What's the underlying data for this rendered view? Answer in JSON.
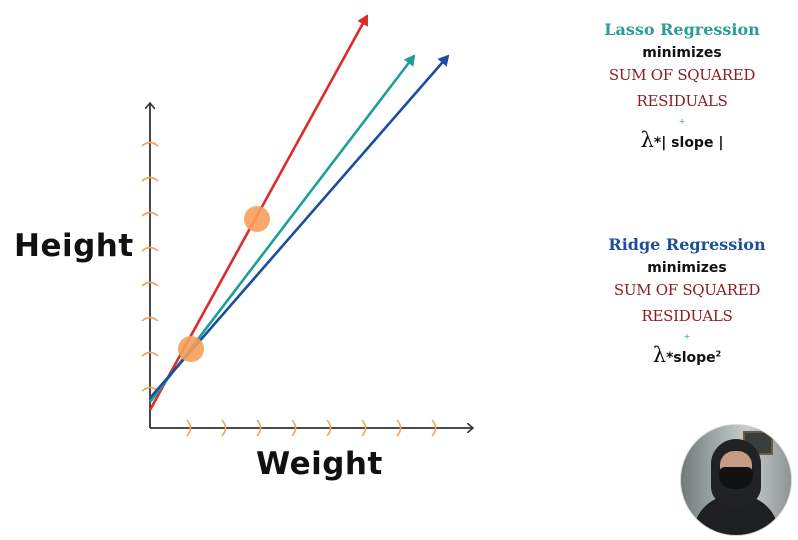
{
  "slide": {
    "x_axis_label": "Weight",
    "y_axis_label": "Height"
  },
  "lasso": {
    "title": "Lasso Regression",
    "title_color": "#2a9d96",
    "minimizes": "minimizes",
    "ssr_line1": "SUM OF SQUARED",
    "ssr_line2": "RESIDUALS",
    "plus": "+",
    "lambda": "λ",
    "penalty": "*| slope |"
  },
  "ridge": {
    "title": "Ridge Regression",
    "title_color": "#1f4e9c",
    "minimizes": "minimizes",
    "ssr_line1": "SUM OF SQUARED",
    "ssr_line2": "RESIDUALS",
    "plus": "+",
    "lambda": "λ",
    "penalty": "*slope",
    "exponent": "2"
  },
  "colors": {
    "axis": "#333333",
    "tick": "#f0a460",
    "point": "#f5a05a",
    "line_red": "#dd2a2a",
    "line_teal": "#1e9e98",
    "line_blue": "#1b4e9e",
    "ssr": "#8b1e24"
  },
  "webcam": {
    "label": "presenter webcam"
  }
}
